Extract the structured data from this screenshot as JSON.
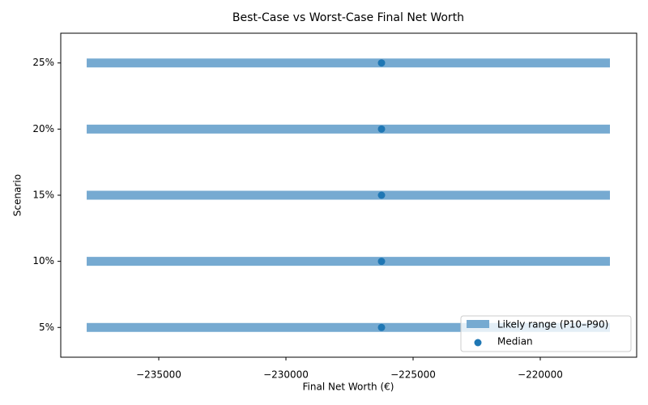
{
  "chart_data": {
    "type": "range",
    "title": "Best-Case vs Worst-Case Final Net Worth",
    "xlabel": "Final Net Worth (€)",
    "ylabel": "Scenario",
    "categories": [
      "5%",
      "10%",
      "15%",
      "20%",
      "25%"
    ],
    "series": [
      {
        "name": "Likely range (P10–P90)",
        "color": "#76aad1",
        "low": [
          -237834,
          -237834,
          -237834,
          -237834,
          -237834
        ],
        "high": [
          -217261,
          -217261,
          -217261,
          -217261,
          -217261
        ]
      },
      {
        "name": "Median",
        "color": "#1f77b4",
        "values": [
          -226242,
          -226242,
          -226242,
          -226242,
          -226242
        ]
      }
    ],
    "xlim": [
      -238854,
      -216210
    ],
    "xticks": [
      {
        "value": -235000,
        "label": "−235000"
      },
      {
        "value": -230000,
        "label": "−230000"
      },
      {
        "value": -225000,
        "label": "−225000"
      },
      {
        "value": -220000,
        "label": "−220000"
      }
    ],
    "legend": "lower right"
  }
}
